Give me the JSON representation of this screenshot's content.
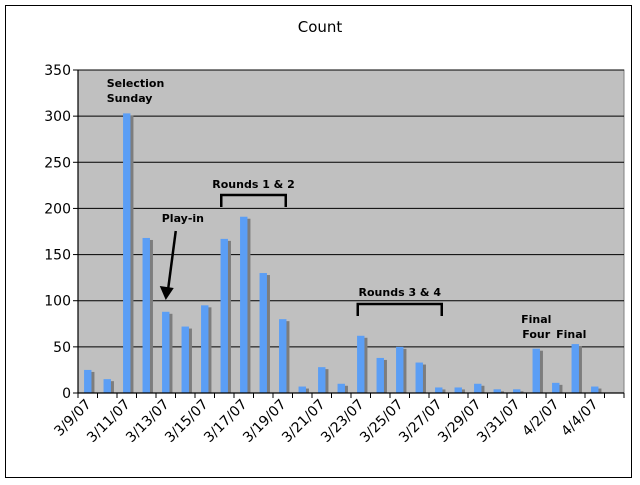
{
  "chart_data": {
    "type": "bar",
    "title": "Count",
    "xlabel": "",
    "ylabel": "",
    "ylim": [
      0,
      350
    ],
    "yticks": [
      0,
      50,
      100,
      150,
      200,
      250,
      300,
      350
    ],
    "grid": true,
    "legend": "none",
    "categories": [
      "3/9/07",
      "3/10/07",
      "3/11/07",
      "3/12/07",
      "3/13/07",
      "3/14/07",
      "3/15/07",
      "3/16/07",
      "3/17/07",
      "3/18/07",
      "3/19/07",
      "3/20/07",
      "3/21/07",
      "3/22/07",
      "3/23/07",
      "3/24/07",
      "3/25/07",
      "3/26/07",
      "3/27/07",
      "3/28/07",
      "3/29/07",
      "3/30/07",
      "3/31/07",
      "4/1/07",
      "4/2/07",
      "4/3/07",
      "4/4/07",
      "4/5/07"
    ],
    "x_tick_labels": [
      "3/9/07",
      "3/11/07",
      "3/13/07",
      "3/15/07",
      "3/17/07",
      "3/19/07",
      "3/21/07",
      "3/23/07",
      "3/25/07",
      "3/27/07",
      "3/29/07",
      "3/31/07",
      "4/2/07",
      "4/4/07"
    ],
    "values": [
      25,
      15,
      303,
      168,
      88,
      72,
      95,
      167,
      191,
      130,
      80,
      7,
      28,
      10,
      62,
      38,
      50,
      33,
      6,
      6,
      10,
      4,
      4,
      48,
      11,
      53,
      7,
      0
    ],
    "bar_color": "#5b9ef5",
    "plot_bg": "#c0c0c0",
    "annotations": [
      {
        "id": "selection",
        "lines": [
          "Selection",
          "Sunday"
        ]
      },
      {
        "id": "playin",
        "lines": [
          "Play-in"
        ]
      },
      {
        "id": "rounds12",
        "lines": [
          "Rounds 1 & 2"
        ]
      },
      {
        "id": "rounds34",
        "lines": [
          "Rounds 3 & 4"
        ]
      },
      {
        "id": "finalfour",
        "lines": [
          "Final",
          "Four"
        ]
      },
      {
        "id": "final",
        "lines": [
          "Final"
        ]
      }
    ]
  }
}
